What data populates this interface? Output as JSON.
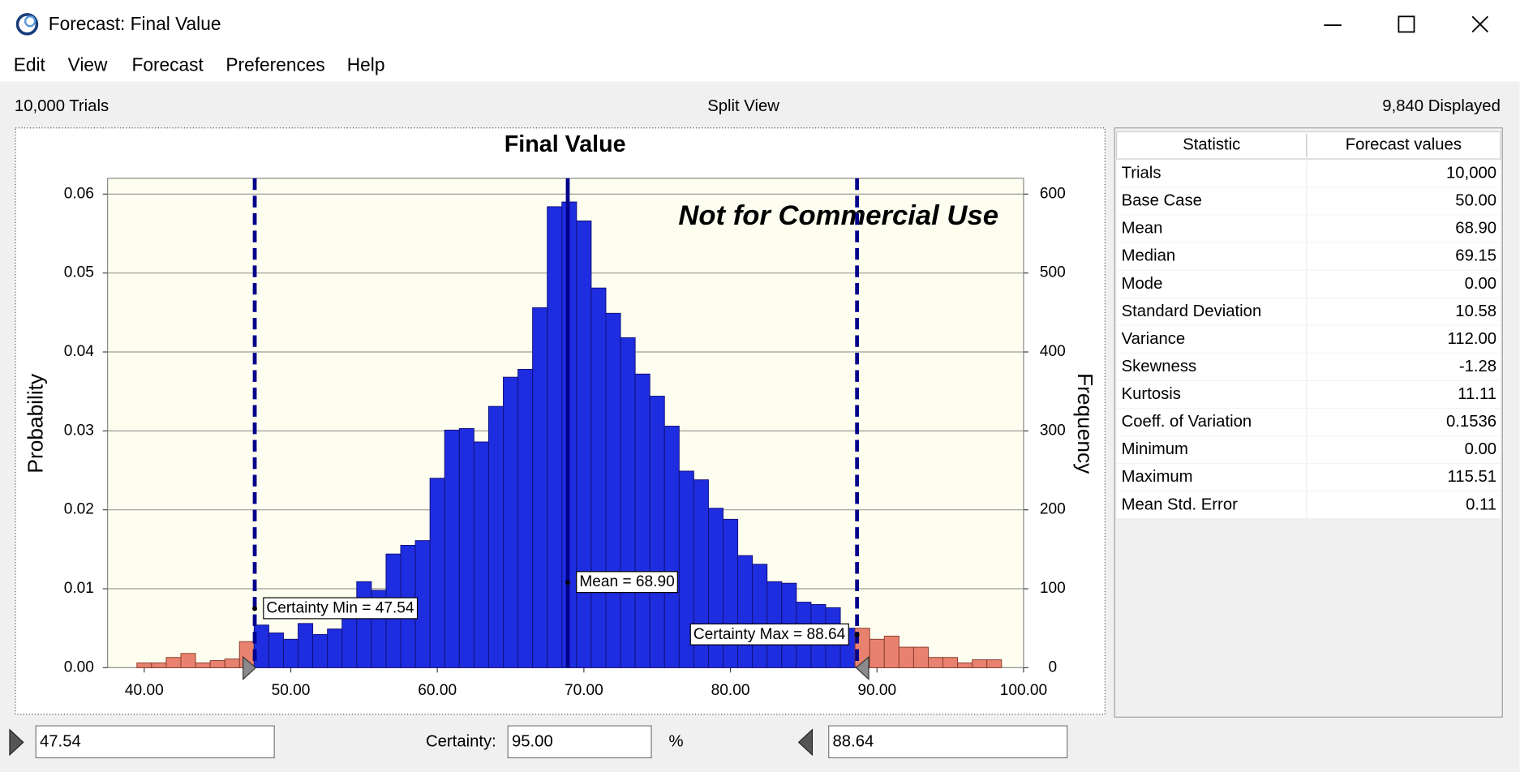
{
  "window": {
    "title": "Forecast: Final Value"
  },
  "menu": [
    "Edit",
    "View",
    "Forecast",
    "Preferences",
    "Help"
  ],
  "status": {
    "trials": "10,000 Trials",
    "view": "Split View",
    "displayed": "9,840 Displayed"
  },
  "chart_data": {
    "type": "histogram",
    "title": "Final Value",
    "ylabel": "Probability",
    "y2label": "Frequency",
    "watermark": "Not for Commercial Use",
    "bins": [
      39.5,
      40.5,
      41.5,
      42.5,
      43.5,
      44.5,
      45.5,
      46.5,
      47.5,
      48.5,
      49.5,
      50.5,
      51.5,
      52.5,
      53.5,
      54.5,
      55.5,
      56.5,
      57.5,
      58.5,
      59.5,
      60.5,
      61.5,
      62.5,
      63.5,
      64.5,
      65.5,
      66.5,
      67.5,
      68.5,
      69.5,
      70.5,
      71.5,
      72.5,
      73.5,
      74.5,
      75.5,
      76.5,
      77.5,
      78.5,
      79.5,
      80.5,
      81.5,
      82.5,
      83.5,
      84.5,
      85.5,
      86.5,
      87.5,
      88.5,
      89.5,
      90.5,
      91.5,
      92.5,
      93.5,
      94.5,
      95.5,
      96.5,
      97.5,
      98.5
    ],
    "counts": [
      6,
      6,
      13,
      18,
      6,
      9,
      11,
      33,
      54,
      44,
      36,
      56,
      42,
      49,
      70,
      109,
      98,
      144,
      155,
      161,
      240,
      301,
      303,
      286,
      331,
      368,
      378,
      456,
      584,
      590,
      566,
      481,
      449,
      418,
      372,
      344,
      306,
      249,
      238,
      202,
      188,
      142,
      131,
      109,
      107,
      83,
      80,
      76,
      50,
      50,
      36,
      40,
      26,
      26,
      13,
      13,
      6,
      10,
      10
    ],
    "color": "#1f2de0",
    "outside_color": "#e8826f",
    "plot_background": "#fefef0",
    "xlim": [
      37.5,
      100
    ],
    "ylim": [
      0,
      0.062
    ],
    "y2lim": [
      0,
      620
    ],
    "xticks": [
      {
        "value": 40,
        "label": "40.00"
      },
      {
        "value": 50,
        "label": "50.00"
      },
      {
        "value": 60,
        "label": "60.00"
      },
      {
        "value": 70,
        "label": "70.00"
      },
      {
        "value": 80,
        "label": "80.00"
      },
      {
        "value": 90,
        "label": "90.00"
      },
      {
        "value": 100,
        "label": "100.00"
      }
    ],
    "yticks": [
      {
        "value": 0,
        "label": "0.00"
      },
      {
        "value": 0.01,
        "label": "0.01"
      },
      {
        "value": 0.02,
        "label": "0.02"
      },
      {
        "value": 0.03,
        "label": "0.03"
      },
      {
        "value": 0.04,
        "label": "0.04"
      },
      {
        "value": 0.05,
        "label": "0.05"
      },
      {
        "value": 0.06,
        "label": "0.06"
      }
    ],
    "y2ticks": [
      0,
      100,
      200,
      300,
      400,
      500,
      600
    ],
    "grid": true,
    "markers": [
      {
        "value": 47.54,
        "label": "Certainty Min = 47.54",
        "style": "dashed"
      },
      {
        "value": 68.9,
        "label": "Mean = 68.90",
        "style": "solid"
      },
      {
        "value": 88.64,
        "label": "Certainty Max = 88.64",
        "style": "dashed"
      }
    ]
  },
  "stats": {
    "header": [
      "Statistic",
      "Forecast values"
    ],
    "rows": [
      [
        "Trials",
        "10,000"
      ],
      [
        "Base Case",
        "50.00"
      ],
      [
        "Mean",
        "68.90"
      ],
      [
        "Median",
        "69.15"
      ],
      [
        "Mode",
        "0.00"
      ],
      [
        "Standard Deviation",
        "10.58"
      ],
      [
        "Variance",
        "112.00"
      ],
      [
        "Skewness",
        "-1.28"
      ],
      [
        "Kurtosis",
        "11.11"
      ],
      [
        "Coeff. of Variation",
        "0.1536"
      ],
      [
        "Minimum",
        "0.00"
      ],
      [
        "Maximum",
        "115.51"
      ],
      [
        "Mean Std. Error",
        "0.11"
      ]
    ]
  },
  "controls": {
    "min": "47.54",
    "certainty_label": "Certainty:",
    "certainty": "95.00",
    "percent": "%",
    "max": "88.64"
  }
}
